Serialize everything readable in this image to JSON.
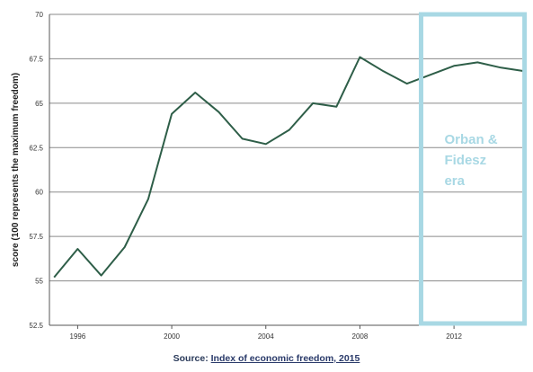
{
  "chart_data": {
    "type": "line",
    "title": "",
    "xlabel": "",
    "ylabel": "score (100 represents the maximum freedom)",
    "ylim": [
      52.5,
      70
    ],
    "xlim": [
      1994.8,
      2014.9
    ],
    "grid": true,
    "y_ticks": [
      52.5,
      55,
      57.5,
      60,
      62.5,
      65,
      67.5,
      70
    ],
    "y_tick_labels": [
      "52.5",
      "55",
      "57.5",
      "60",
      "62.5",
      "65",
      "67.5",
      "70"
    ],
    "x_ticks": [
      1996,
      2000,
      2004,
      2008,
      2012
    ],
    "x_tick_labels": [
      "1996",
      "2000",
      "2004",
      "2008",
      "2012"
    ],
    "x": [
      1995,
      1996,
      1997,
      1998,
      1999,
      2000,
      2001,
      2002,
      2003,
      2004,
      2005,
      2006,
      2007,
      2008,
      2009,
      2010,
      2011,
      2012,
      2013,
      2014,
      2015
    ],
    "series": [
      {
        "values": [
          55.2,
          56.8,
          55.3,
          56.9,
          59.6,
          64.4,
          65.6,
          64.5,
          63.0,
          62.7,
          63.5,
          65.0,
          64.8,
          67.6,
          66.8,
          66.1,
          66.6,
          67.1,
          67.3,
          67.0,
          66.8
        ]
      }
    ],
    "line_color": "#2e5e48",
    "annotation": {
      "lines": [
        "Orban &",
        "Fidesz",
        "era"
      ],
      "x_range": [
        2010.6,
        2015
      ],
      "color": "#a8d8e4"
    }
  },
  "source": {
    "prefix": "Source: ",
    "link_text": "Index of economic freedom, 2015"
  }
}
